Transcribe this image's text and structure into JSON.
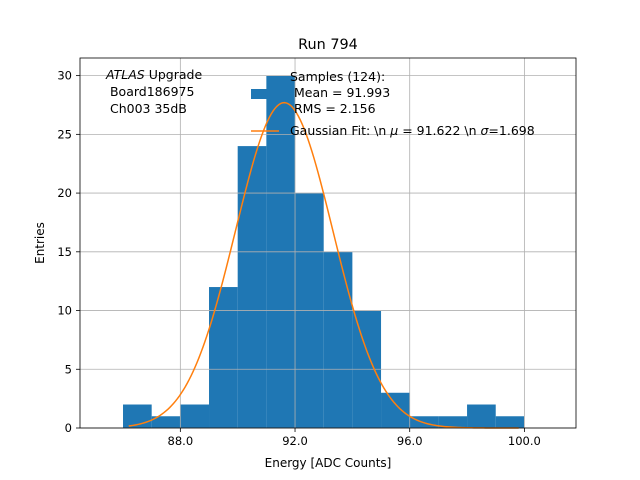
{
  "chart_data": {
    "type": "bar",
    "title": "Run 794",
    "xlabel": "Energy [ADC Counts]",
    "ylabel": "Entries",
    "xlim": [
      84.5,
      101.8
    ],
    "ylim": [
      0,
      31.5
    ],
    "grid": true,
    "xticks": [
      88,
      92,
      96,
      100
    ],
    "xtick_labels": [
      "88.0",
      "92.0",
      "96.0",
      "100.0"
    ],
    "yticks": [
      0,
      5,
      10,
      15,
      20,
      25,
      30
    ],
    "ytick_labels": [
      "0",
      "5",
      "10",
      "15",
      "20",
      "25",
      "30"
    ],
    "bin_edges": [
      86,
      87,
      88,
      89,
      90,
      91,
      92,
      93,
      94,
      95,
      96,
      97,
      98,
      99,
      100
    ],
    "counts": [
      2,
      1,
      2,
      12,
      24,
      30,
      20,
      15,
      10,
      3,
      1,
      1,
      2,
      1
    ],
    "fit": {
      "mu": 91.622,
      "sigma": 1.698,
      "amplitude": 27.7,
      "x_range": [
        86.2,
        99.8
      ]
    },
    "colors": {
      "hist": "#1f77b4",
      "fit": "#ff7f0e",
      "grid": "#b0b0b0"
    },
    "annotation": {
      "italic": "ATLAS",
      "line1_rest": " Upgrade",
      "line2": " Board186975",
      "line3": " Ch003 35dB"
    },
    "legend": {
      "placement": "top-right",
      "samples_line1": "Samples (124):",
      "samples_line2": " Mean = 91.993",
      "samples_line3": " RMS = 2.156",
      "fit_pre": "Gaussian Fit: \\n ",
      "fit_mu_symbol": "μ",
      "fit_mid": " = 91.622 \\n ",
      "fit_sigma_symbol": "σ",
      "fit_post": "=1.698"
    }
  }
}
